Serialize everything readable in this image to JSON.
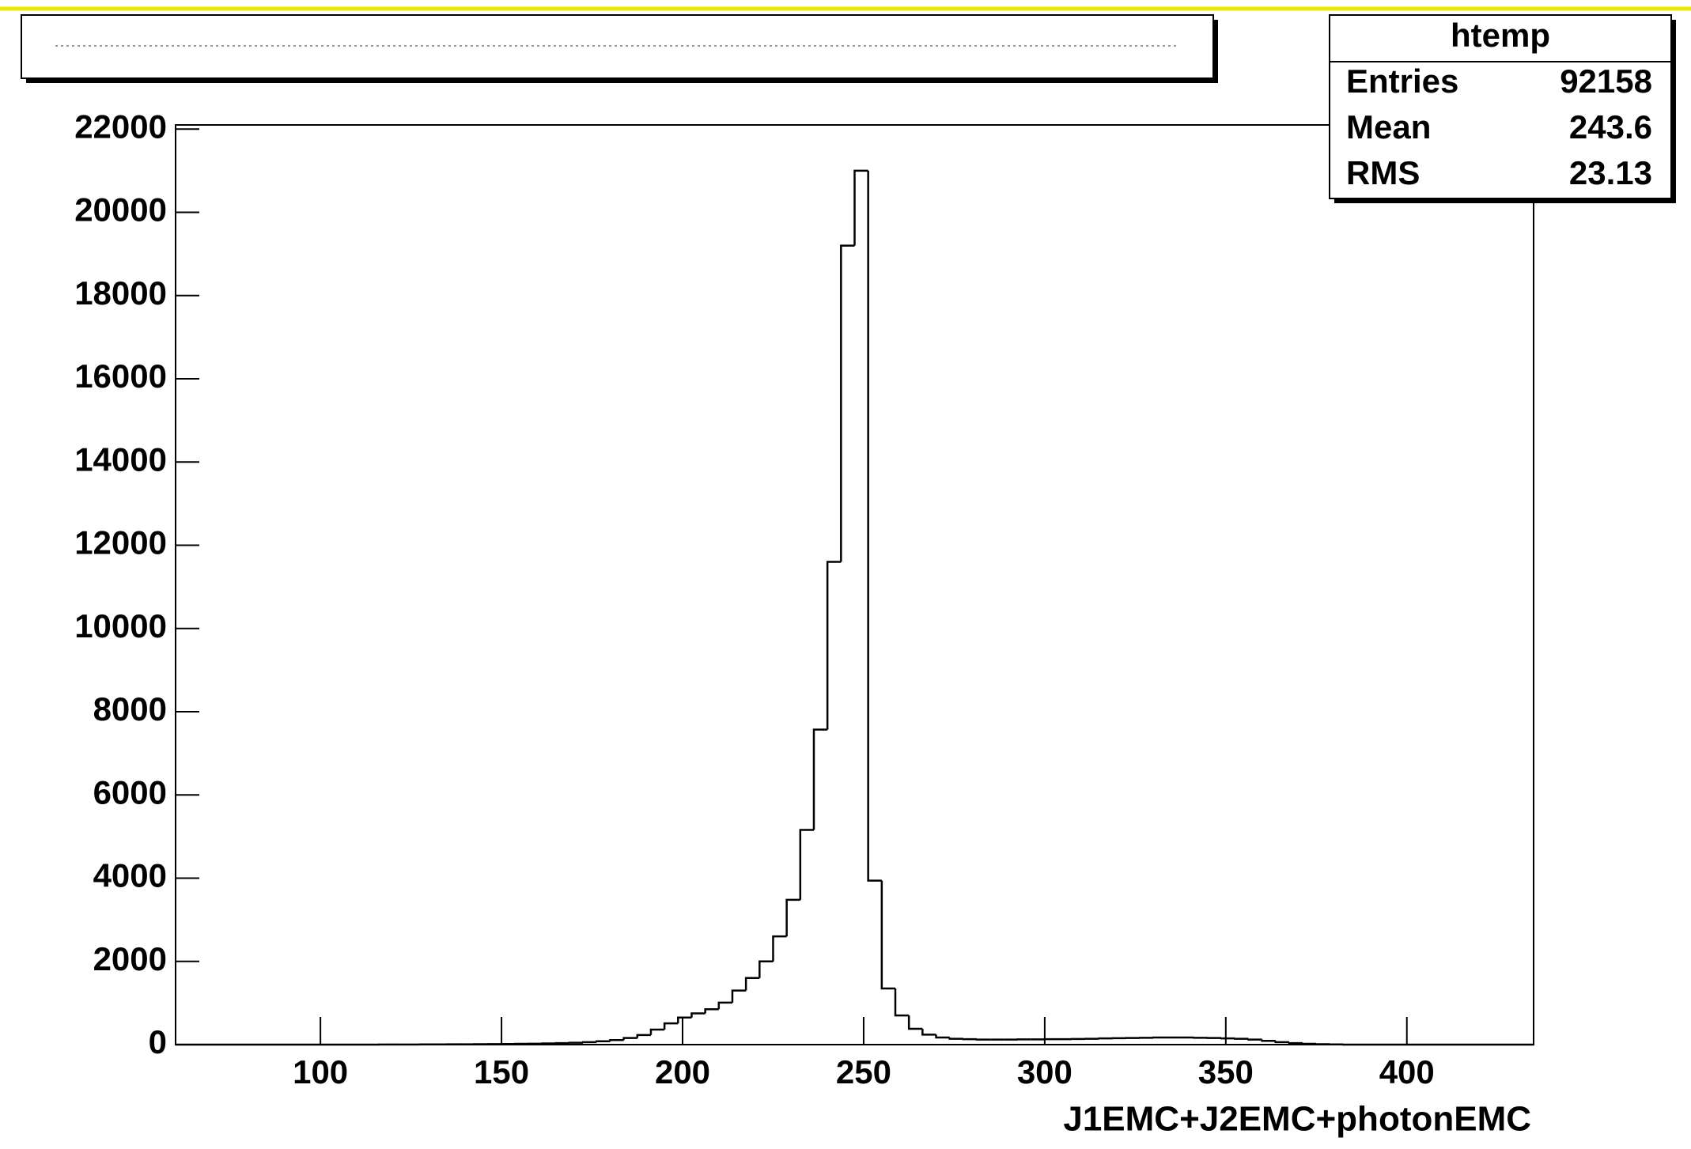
{
  "chart_data": {
    "type": "histogram",
    "x_label": "J1EMC+J2EMC+photonEMC",
    "bins": [
      60,
      63.75,
      67.5,
      71.25,
      75,
      78.75,
      82.5,
      86.25,
      90,
      93.75,
      97.5,
      101.25,
      105,
      108.75,
      112.5,
      116.25,
      120,
      123.75,
      127.5,
      131.25,
      135,
      138.75,
      142.5,
      146.25,
      150,
      153.75,
      157.5,
      161.25,
      165,
      168.75,
      172.5,
      176.25,
      180,
      183.75,
      187.5,
      191.25,
      195,
      198.75,
      202.5,
      206.25,
      210,
      213.75,
      217.5,
      221.25,
      225,
      228.75,
      232.5,
      236.25,
      240,
      243.75,
      247.5,
      251.25,
      255,
      258.75,
      262.5,
      266.25,
      270,
      273.75,
      277.5,
      281.25,
      285,
      288.75,
      292.5,
      296.25,
      300,
      303.75,
      307.5,
      311.25,
      315,
      318.75,
      322.5,
      326.25,
      330,
      333.75,
      337.5,
      341.25,
      345,
      348.75,
      352.5,
      356.25,
      360,
      363.75,
      367.5,
      371.25,
      375,
      378.75,
      382.5,
      386.25,
      390,
      393.75,
      397.5,
      401.25,
      405,
      408.75,
      412.5,
      416.25,
      420,
      423.75,
      427.5,
      431.25,
      435
    ],
    "counts": [
      0,
      0,
      0,
      0,
      0,
      0,
      0,
      0,
      0,
      0,
      0,
      0,
      0,
      0,
      0,
      2,
      3,
      3,
      4,
      5,
      6,
      8,
      10,
      12,
      15,
      18,
      22,
      28,
      35,
      45,
      60,
      80,
      110,
      160,
      230,
      360,
      510,
      650,
      750,
      850,
      1010,
      1300,
      1600,
      2000,
      2600,
      3480,
      5160,
      7570,
      11600,
      19200,
      21000,
      3940,
      1350,
      700,
      380,
      240,
      170,
      140,
      130,
      120,
      120,
      120,
      125,
      125,
      130,
      130,
      135,
      140,
      150,
      155,
      160,
      165,
      170,
      170,
      170,
      165,
      160,
      150,
      140,
      120,
      90,
      60,
      35,
      20,
      10,
      5,
      0,
      0,
      0,
      0,
      0,
      0,
      0,
      0,
      0,
      0,
      0,
      0,
      0,
      0
    ],
    "color": "#000000",
    "xlim": [
      60,
      435
    ],
    "ylim": [
      0,
      22100
    ],
    "xticks": [
      100,
      150,
      200,
      250,
      300,
      350,
      400
    ],
    "yticks": [
      0,
      2000,
      4000,
      6000,
      8000,
      10000,
      12000,
      14000,
      16000,
      18000,
      20000,
      22000
    ],
    "stats": {
      "title": "htemp",
      "rows": [
        [
          "Entries",
          92158
        ],
        [
          "Mean",
          243.6
        ],
        [
          "RMS",
          23.13
        ]
      ]
    }
  }
}
